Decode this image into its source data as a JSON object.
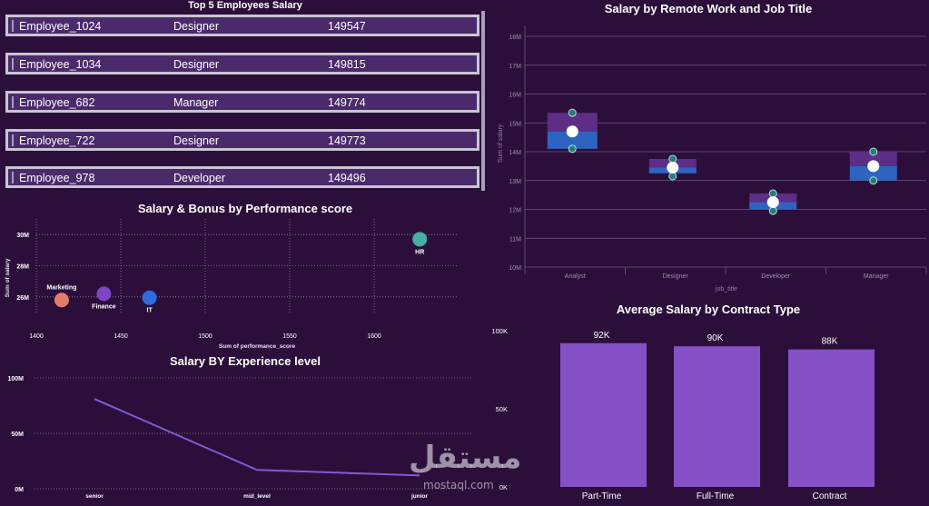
{
  "top5": {
    "title": "Top 5 Employees Salary",
    "rows": [
      {
        "name": "Employee_1024",
        "title": "Designer",
        "salary": "149547"
      },
      {
        "name": "Employee_1034",
        "title": "Designer",
        "salary": "149815"
      },
      {
        "name": "Employee_682",
        "title": "Manager",
        "salary": "149774"
      },
      {
        "name": "Employee_722",
        "title": "Designer",
        "salary": "149773"
      },
      {
        "name": "Employee_978",
        "title": "Developer",
        "salary": "149496"
      }
    ]
  },
  "watermark": {
    "brand": "مستقل",
    "url": "mostaql.com"
  },
  "colors": {
    "background": "#2b0f3a",
    "bar": "#8650c6",
    "line": "#8a55d6",
    "box_upper": "#5e2d86",
    "box_lower": "#2f63c0"
  },
  "chart_data": [
    {
      "type": "scatter",
      "title": "Salary & Bonus by Performance score",
      "xlabel": "Sum of performance_score",
      "ylabel": "Sum of salary",
      "xlim": [
        1400,
        1650
      ],
      "ylim": [
        25000000,
        31000000
      ],
      "x_ticks": [
        "1400",
        "1450",
        "1500",
        "1550",
        "1600"
      ],
      "y_ticks": [
        "26M",
        "28M",
        "30M"
      ],
      "grid": true,
      "points": [
        {
          "label": "Marketing",
          "x": 1415,
          "y": 25800000,
          "color": "#e07e6a"
        },
        {
          "label": "Finance",
          "x": 1440,
          "y": 26200000,
          "color": "#7b47c4"
        },
        {
          "label": "IT",
          "x": 1467,
          "y": 25950000,
          "color": "#2e6de0"
        },
        {
          "label": "HR",
          "x": 1627,
          "y": 29700000,
          "color": "#45b0a2"
        }
      ]
    },
    {
      "type": "line",
      "title": "Salary BY Experience level",
      "categories": [
        "senior",
        "mid_level",
        "junior"
      ],
      "values": [
        81000000,
        17000000,
        12000000
      ],
      "ylim": [
        0,
        100000000
      ],
      "y_ticks": [
        "0M",
        "50M",
        "100M"
      ],
      "grid": true
    },
    {
      "type": "box",
      "title": "Salary by Remote Work and Job Title",
      "xlabel": "job_title",
      "ylabel": "Sum of salary",
      "ylim": [
        10000000,
        18000000
      ],
      "y_ticks": [
        "10M",
        "11M",
        "12M",
        "13M",
        "14M",
        "15M",
        "16M",
        "17M",
        "18M"
      ],
      "categories": [
        "Analyst",
        "Designer",
        "Developer",
        "Manager"
      ],
      "series": [
        {
          "min": 14100000,
          "q1": 14100000,
          "median": 14700000,
          "q3": 15350000,
          "max": 15350000,
          "mean": 14700000
        },
        {
          "min": 13150000,
          "q1": 13250000,
          "median": 13450000,
          "q3": 13750000,
          "max": 13750000,
          "mean": 13450000
        },
        {
          "min": 11950000,
          "q1": 12000000,
          "median": 12250000,
          "q3": 12550000,
          "max": 12550000,
          "mean": 12250000
        },
        {
          "min": 13000000,
          "q1": 13000000,
          "median": 13500000,
          "q3": 14000000,
          "max": 14000000,
          "mean": 13500000
        }
      ]
    },
    {
      "type": "bar",
      "title": "Average Salary by Contract Type",
      "categories": [
        "Part-Time",
        "Full-Time",
        "Contract"
      ],
      "values": [
        92000,
        90000,
        88000
      ],
      "data_labels": [
        "92K",
        "90K",
        "88K"
      ],
      "ylim": [
        0,
        100000
      ],
      "y_ticks": [
        "0K",
        "50K",
        "100K"
      ]
    }
  ]
}
